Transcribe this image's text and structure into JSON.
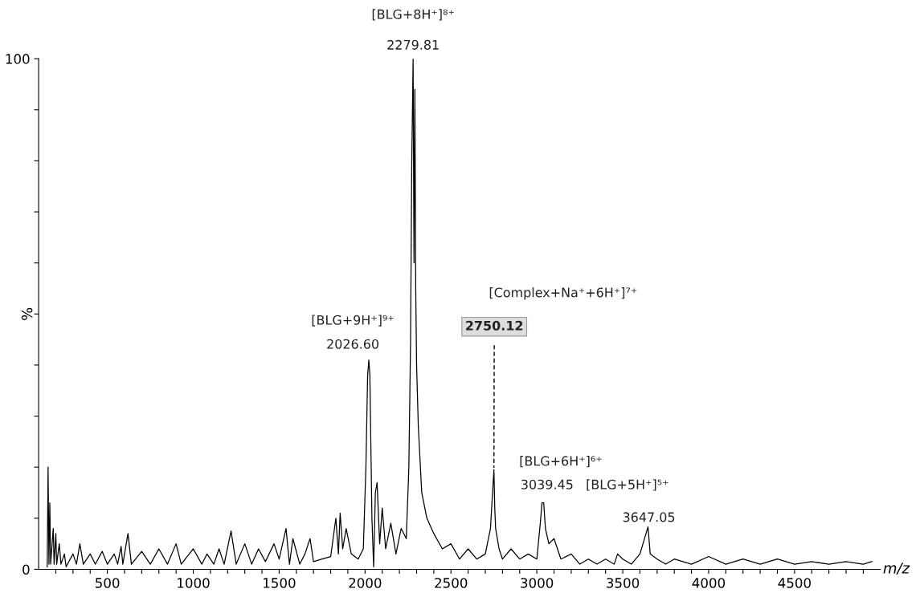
{
  "chart_data": {
    "type": "line",
    "xlabel": "m/z",
    "ylabel": "%",
    "x": [
      150,
      155,
      160,
      165,
      170,
      185,
      190,
      200,
      205,
      220,
      230,
      250,
      260,
      300,
      320,
      340,
      360,
      400,
      430,
      470,
      500,
      540,
      560,
      580,
      590,
      620,
      640,
      700,
      750,
      800,
      850,
      900,
      930,
      1000,
      1050,
      1080,
      1120,
      1150,
      1180,
      1220,
      1250,
      1300,
      1340,
      1380,
      1420,
      1470,
      1500,
      1540,
      1560,
      1580,
      1620,
      1650,
      1680,
      1700,
      1750,
      1800,
      1830,
      1845,
      1855,
      1870,
      1890,
      1920,
      1960,
      1990,
      2005,
      2015,
      2022,
      2028,
      2040,
      2050,
      2060,
      2070,
      2085,
      2100,
      2120,
      2150,
      2180,
      2210,
      2240,
      2255,
      2265,
      2272,
      2279.81,
      2285,
      2290,
      2295,
      2300,
      2310,
      2330,
      2360,
      2400,
      2450,
      2500,
      2550,
      2600,
      2650,
      2700,
      2730,
      2750.12,
      2755,
      2760,
      2780,
      2800,
      2850,
      2900,
      2950,
      3000,
      3020,
      3030,
      3040,
      3050,
      3070,
      3100,
      3140,
      3200,
      3250,
      3300,
      3350,
      3400,
      3450,
      3470,
      3500,
      3550,
      3600,
      3647,
      3660,
      3700,
      3750,
      3800,
      3900,
      4000,
      4100,
      4200,
      4300,
      4400,
      4500,
      4600,
      4700,
      4800,
      4900,
      4950
    ],
    "series": [
      {
        "color": "#000000",
        "values": [
          0.5,
          20,
          1,
          13,
          1,
          8,
          1,
          7,
          1,
          5,
          1,
          3,
          0.5,
          3,
          1,
          5,
          1,
          3,
          1,
          3.5,
          1,
          3,
          1,
          4.5,
          1,
          7,
          1,
          3.5,
          1,
          4,
          1,
          5,
          1,
          4,
          1,
          3,
          1,
          4,
          1,
          7.5,
          1,
          5,
          1,
          4,
          1.5,
          5,
          2,
          8,
          1,
          6,
          1,
          3,
          6,
          1.5,
          2,
          2.5,
          10,
          3,
          11,
          4,
          8,
          3,
          2,
          4,
          20,
          38,
          41,
          38,
          10,
          0.5,
          15,
          17,
          5,
          12,
          4,
          9,
          3,
          8,
          6,
          20,
          45,
          80,
          100,
          60,
          94,
          55,
          40,
          28,
          15,
          10,
          7,
          4,
          5,
          2,
          4,
          2,
          3,
          8,
          19.5,
          12,
          8,
          4,
          2,
          4,
          2,
          3,
          2,
          9,
          13,
          13,
          8,
          5,
          6,
          2,
          3,
          1,
          2,
          1,
          2,
          1,
          3,
          2,
          1,
          3,
          8.3,
          3,
          2,
          1,
          2,
          1,
          2.5,
          1,
          2,
          1,
          2,
          1,
          1.5,
          1,
          1.5,
          1,
          1.5
        ]
      }
    ],
    "xlim": [
      100,
      5000
    ],
    "xticks": [
      {
        "value": 200,
        "label": null
      },
      {
        "value": 300,
        "label": null
      },
      {
        "value": 400,
        "label": null
      },
      500,
      {
        "value": 600,
        "label": null
      },
      {
        "value": 700,
        "label": null
      },
      {
        "value": 800,
        "label": null
      },
      {
        "value": 900,
        "label": null
      },
      1000,
      {
        "value": 1100,
        "label": null
      },
      {
        "value": 1200,
        "label": null
      },
      {
        "value": 1300,
        "label": null
      },
      {
        "value": 1400,
        "label": null
      },
      1500,
      {
        "value": 1600,
        "label": null
      },
      {
        "value": 1700,
        "label": null
      },
      {
        "value": 1800,
        "label": null
      },
      {
        "value": 1900,
        "label": null
      },
      2000,
      {
        "value": 2100,
        "label": null
      },
      {
        "value": 2200,
        "label": null
      },
      {
        "value": 2300,
        "label": null
      },
      {
        "value": 2400,
        "label": null
      },
      2500,
      {
        "value": 2600,
        "label": null
      },
      {
        "value": 2700,
        "label": null
      },
      {
        "value": 2800,
        "label": null
      },
      {
        "value": 2900,
        "label": null
      },
      3000,
      {
        "value": 3100,
        "label": null
      },
      {
        "value": 3200,
        "label": null
      },
      {
        "value": 3300,
        "label": null
      },
      {
        "value": 3400,
        "label": null
      },
      3500,
      {
        "value": 3600,
        "label": null
      },
      {
        "value": 3700,
        "label": null
      },
      {
        "value": 3800,
        "label": null
      },
      {
        "value": 3900,
        "label": null
      },
      4000,
      {
        "value": 4100,
        "label": null
      },
      {
        "value": 4200,
        "label": null
      },
      {
        "value": 4300,
        "label": null
      },
      {
        "value": 4400,
        "label": null
      },
      4500,
      {
        "value": 4600,
        "label": null
      },
      {
        "value": 4700,
        "label": null
      },
      {
        "value": 4800,
        "label": null
      },
      {
        "value": 4900,
        "label": null
      }
    ],
    "ylim": [
      0,
      100
    ],
    "yticks": [
      0,
      {
        "value": 10,
        "label": null
      },
      {
        "value": 20,
        "label": null
      },
      {
        "value": 30,
        "label": null
      },
      {
        "value": 40,
        "label": null
      },
      {
        "value": 50,
        "label": null
      },
      {
        "value": 60,
        "label": null
      },
      {
        "value": 70,
        "label": null
      },
      {
        "value": 80,
        "label": null
      },
      {
        "value": 90,
        "label": null
      },
      100
    ],
    "annotations": [
      {
        "text": "[BLG+8H⁺]⁸⁺",
        "x": 2279.81,
        "y": 100
      },
      {
        "text": "2279.81",
        "x": 2279.81,
        "y": 100
      },
      {
        "text": "[BLG+9H⁺]⁹⁺",
        "x": 2026.6,
        "y": 41
      },
      {
        "text": "2026.60",
        "x": 2026.6,
        "y": 41
      },
      "[Complex+Na⁺+6H⁺]⁷⁺",
      {
        "text": "2750.12",
        "x": 2750.12,
        "y": 19.5
      },
      {
        "text": "[BLG+6H⁺]⁶⁺",
        "x": 3039.45,
        "y": 13
      },
      {
        "text": "3039.45",
        "x": 3039.45,
        "y": 13
      },
      {
        "text": "[BLG+5H⁺]⁵⁺",
        "x": 3647.05,
        "y": 8.3
      },
      {
        "text": "3647.05",
        "x": 3647.05,
        "y": 8.3
      }
    ],
    "grid": false,
    "legend": false
  }
}
